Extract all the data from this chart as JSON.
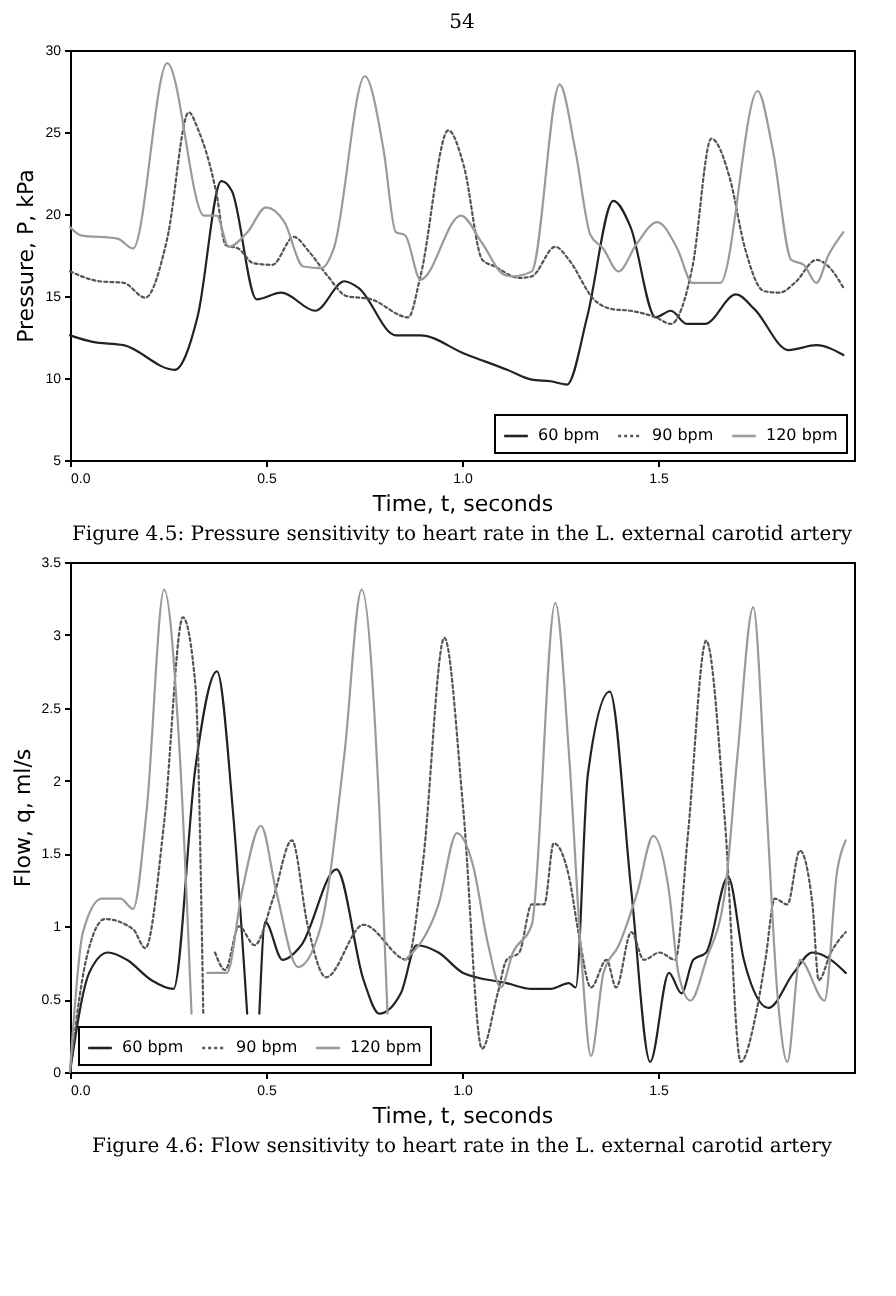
{
  "chart_data": [
    {
      "type": "line",
      "xlabel": "Time, t, seconds",
      "ylabel": "Pressure, P, kPa",
      "annotations": [
        "54",
        "Figure 4.5:   Pressure sensitivity to heart rate in the L. external carotid artery"
      ],
      "xlim": [
        0,
        2.0
      ],
      "ylim": [
        5,
        30
      ],
      "xticks": [
        {
          "value": 0,
          "label": "0.0"
        },
        {
          "value": 0.5,
          "label": "0.5"
        },
        {
          "value": 1,
          "label": "1.0"
        },
        {
          "value": 1.5,
          "label": "1.5"
        }
      ],
      "yticks": [
        5,
        10,
        15,
        20,
        25,
        30
      ],
      "grid": false,
      "legend": "bottom right",
      "marker": "none",
      "series": [
        {
          "name": "60 bpm",
          "color": "#222222",
          "line_style": "solid",
          "x": [
            0,
            0.058,
            0.137,
            0.267,
            0.326,
            0.386,
            0.413,
            0.476,
            0.539,
            0.626,
            0.7,
            0.736,
            0.831,
            0.894,
            1.005,
            1.115,
            1.178,
            1.226,
            1.268,
            1.32,
            1.386,
            1.43,
            1.494,
            1.533,
            1.573,
            1.62,
            1.699,
            1.746,
            1.833,
            1.904,
            1.973
          ],
          "values": [
            12.6,
            12.2,
            12.0,
            10.5,
            13.8,
            22.0,
            21.4,
            14.8,
            15.2,
            14.1,
            15.9,
            15.5,
            12.6,
            12.6,
            11.5,
            10.5,
            9.9,
            9.8,
            9.6,
            13.8,
            20.8,
            19.2,
            13.7,
            14.1,
            13.3,
            13.3,
            15.1,
            14.2,
            11.7,
            12.0,
            11.4
          ]
        },
        {
          "name": "90 bpm",
          "color": "#555555",
          "line_style": "dotted",
          "x": [
            0,
            0.074,
            0.137,
            0.192,
            0.248,
            0.303,
            0.326,
            0.374,
            0.397,
            0.429,
            0.468,
            0.516,
            0.571,
            0.61,
            0.658,
            0.705,
            0.768,
            0.863,
            0.894,
            0.965,
            1.005,
            1.052,
            1.084,
            1.147,
            1.178,
            1.238,
            1.273,
            1.336,
            1.383,
            1.43,
            1.494,
            1.533,
            1.588,
            1.636,
            1.683,
            1.722,
            1.77,
            1.81,
            1.849,
            1.904,
            1.935,
            1.973
          ],
          "values": [
            16.5,
            15.9,
            15.8,
            14.9,
            18.5,
            26.2,
            25.2,
            21.2,
            18.1,
            17.9,
            17.0,
            16.9,
            18.6,
            17.7,
            16.2,
            15.0,
            14.8,
            13.7,
            16.2,
            25.1,
            22.9,
            17.2,
            16.8,
            16.1,
            16.2,
            18.0,
            17.2,
            14.8,
            14.2,
            14.1,
            13.7,
            13.3,
            16.8,
            24.6,
            22.2,
            17.9,
            15.3,
            15.2,
            15.8,
            17.2,
            16.8,
            15.5
          ]
        },
        {
          "name": "120 bpm",
          "color": "#9a9a9a",
          "line_style": "solid",
          "x": [
            0,
            0.027,
            0.121,
            0.161,
            0.248,
            0.342,
            0.374,
            0.405,
            0.453,
            0.5,
            0.547,
            0.595,
            0.642,
            0.673,
            0.752,
            0.8,
            0.831,
            0.855,
            0.894,
            0.997,
            1.052,
            1.107,
            1.13,
            1.178,
            1.249,
            1.289,
            1.328,
            1.36,
            1.399,
            1.446,
            1.498,
            1.549,
            1.588,
            1.659,
            1.754,
            1.793,
            1.84,
            1.872,
            1.904,
            1.935,
            1.973
          ],
          "values": [
            19.2,
            18.7,
            18.5,
            17.9,
            29.2,
            19.9,
            19.9,
            18.0,
            18.9,
            20.4,
            19.5,
            16.8,
            16.7,
            17.9,
            28.4,
            23.9,
            18.9,
            18.7,
            16.0,
            19.9,
            18.2,
            16.3,
            16.2,
            16.5,
            27.9,
            23.9,
            18.7,
            17.9,
            16.5,
            18.2,
            19.5,
            17.9,
            15.8,
            15.8,
            27.5,
            23.9,
            17.2,
            16.9,
            15.8,
            17.5,
            18.9
          ]
        }
      ]
    },
    {
      "type": "line",
      "xlabel": "Time, t, seconds",
      "ylabel": "Flow, q, ml/s",
      "annotations": [
        "Figure 4.6:   Flow sensitivity to heart rate in the L. external carotid artery"
      ],
      "xlim": [
        0,
        2.0
      ],
      "ylim": [
        0,
        3.5
      ],
      "xticks": [
        {
          "value": 0,
          "label": "0.0"
        },
        {
          "value": 0.5,
          "label": "0.5"
        },
        {
          "value": 1,
          "label": "1.0"
        },
        {
          "value": 1.5,
          "label": "1.5"
        }
      ],
      "yticks": [
        0,
        0.5,
        1,
        1.5,
        2,
        2.5,
        3,
        3.5
      ],
      "grid": false,
      "legend": "bottom left",
      "marker": "none",
      "series": [
        {
          "name": "60 bpm",
          "color": "#222222",
          "line_style": "solid",
          "x": [
            0,
            0.049,
            0.097,
            0.145,
            0.208,
            0.264,
            0.32,
            0.375,
            0.415,
            0.452,
            0.467,
            0.483,
            0.498,
            0.542,
            0.59,
            0.68,
            0.749,
            0.789,
            0.844,
            0.884,
            0.94,
            1.003,
            1.114,
            1.178,
            1.226,
            1.273,
            1.29,
            1.321,
            1.377,
            1.432,
            1.48,
            1.528,
            1.56,
            1.59,
            1.623,
            1.679,
            1.719,
            1.782,
            1.846,
            1.894,
            1.941,
            1.979
          ],
          "values": [
            0,
            0.68,
            0.82,
            0.77,
            0.63,
            0.57,
            2.09,
            2.75,
            1.81,
            0.4,
            null,
            0.4,
            1.03,
            0.77,
            0.87,
            1.39,
            0.63,
            0.4,
            0.54,
            0.87,
            0.82,
            0.68,
            0.61,
            0.57,
            0.57,
            0.61,
            0.58,
            2.04,
            2.61,
            1.24,
            0.07,
            0.68,
            0.54,
            0.77,
            0.82,
            1.34,
            0.77,
            0.44,
            0.68,
            0.82,
            0.77,
            0.68
          ]
        },
        {
          "name": "90 bpm",
          "color": "#555555",
          "line_style": "dotted",
          "x": [
            0,
            0.041,
            0.089,
            0.161,
            0.192,
            0.24,
            0.288,
            0.32,
            0.34,
            0.355,
            0.37,
            0.396,
            0.431,
            0.471,
            0.518,
            0.566,
            0.606,
            0.653,
            0.749,
            0.86,
            0.9,
            0.955,
            1.003,
            1.051,
            1.091,
            1.114,
            1.146,
            1.178,
            1.21,
            1.234,
            1.273,
            1.297,
            1.329,
            1.369,
            1.393,
            1.432,
            1.464,
            1.504,
            1.544,
            1.576,
            1.623,
            1.671,
            1.711,
            1.75,
            1.774,
            1.798,
            1.83,
            1.862,
            1.894,
            1.91,
            1.941,
            1.979
          ],
          "values": [
            0,
            0.77,
            1.05,
            0.98,
            0.85,
            1.71,
            3.12,
            2.65,
            0.4,
            null,
            0.82,
            0.7,
            1.0,
            0.87,
            1.19,
            1.59,
            1.01,
            0.65,
            1.01,
            0.77,
            1.43,
            2.98,
            1.81,
            0.16,
            0.54,
            0.77,
            0.82,
            1.15,
            1.15,
            1.57,
            1.34,
            0.96,
            0.58,
            0.77,
            0.58,
            0.96,
            0.77,
            0.82,
            0.77,
            1.62,
            2.96,
            1.71,
            0.07,
            0.4,
            0.77,
            1.19,
            1.15,
            1.52,
            1.15,
            0.63,
            0.82,
            0.96
          ]
        },
        {
          "name": "120 bpm",
          "color": "#9a9a9a",
          "line_style": "solid",
          "x": [
            0,
            0.033,
            0.081,
            0.129,
            0.161,
            0.196,
            0.24,
            0.28,
            0.31,
            0.33,
            0.35,
            0.4,
            0.439,
            0.487,
            0.526,
            0.582,
            0.64,
            0.7,
            0.744,
            0.789,
            0.81,
            0.83,
            0.855,
            0.94,
            0.987,
            1.027,
            1.067,
            1.099,
            1.13,
            1.178,
            1.238,
            1.273,
            1.305,
            1.329,
            1.361,
            1.4,
            1.448,
            1.488,
            1.528,
            1.552,
            1.583,
            1.623,
            1.671,
            1.703,
            1.743,
            1.774,
            1.806,
            1.83,
            1.862,
            1.925,
            1.957,
            1.979
          ],
          "values": [
            0,
            0.96,
            1.19,
            1.19,
            1.12,
            1.81,
            3.31,
            2.18,
            0.4,
            null,
            0.68,
            0.68,
            1.24,
            1.69,
            1.24,
            0.72,
            1.0,
            2.18,
            3.31,
            1.81,
            0.4,
            null,
            0.77,
            1.15,
            1.64,
            1.43,
            0.87,
            0.58,
            0.82,
            1.01,
            3.22,
            2.18,
            0.77,
            0.11,
            0.68,
            0.87,
            1.24,
            1.62,
            1.24,
            0.68,
            0.49,
            0.77,
            1.24,
            2.18,
            3.19,
            1.95,
            0.49,
            0.07,
            0.77,
            0.49,
            1.38,
            1.59
          ]
        }
      ]
    }
  ]
}
